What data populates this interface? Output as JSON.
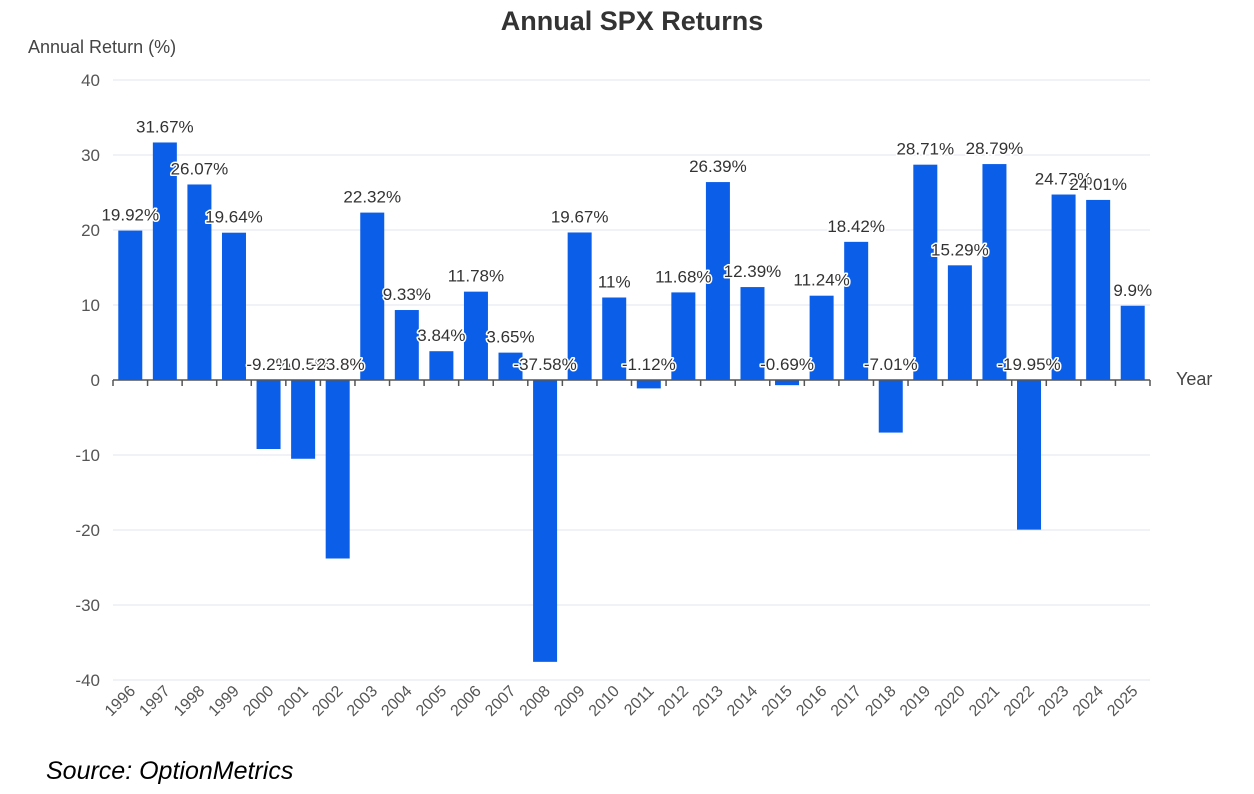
{
  "chart_data": {
    "type": "bar",
    "title": "Annual SPX Returns",
    "ylabel": "Annual Return (%)",
    "xlabel": "Year",
    "ylim": [
      -40,
      40
    ],
    "yticks": [
      40,
      30,
      20,
      10,
      0,
      -10,
      -20,
      -30,
      -40
    ],
    "grid": true,
    "legend": "none",
    "categories": [
      "1996",
      "1997",
      "1998",
      "1999",
      "2000",
      "2001",
      "2002",
      "2003",
      "2004",
      "2005",
      "2006",
      "2007",
      "2008",
      "2009",
      "2010",
      "2011",
      "2012",
      "2013",
      "2014",
      "2015",
      "2016",
      "2017",
      "2018",
      "2019",
      "2020",
      "2021",
      "2022",
      "2023",
      "2024",
      "2025"
    ],
    "values": [
      19.92,
      31.67,
      26.07,
      19.64,
      -9.2,
      -10.5,
      -23.8,
      22.32,
      9.33,
      3.84,
      11.78,
      3.65,
      -37.58,
      19.67,
      11,
      -1.12,
      11.68,
      26.39,
      12.39,
      -0.69,
      11.24,
      18.42,
      -7.01,
      28.71,
      15.29,
      28.79,
      -19.95,
      24.73,
      24.01,
      9.9
    ],
    "data_labels": [
      "19.92%",
      "31.67%",
      "26.07%",
      "19.64%",
      "-9.2%",
      "-10.5%",
      "-23.8%",
      "22.32%",
      "9.33%",
      "3.84%",
      "11.78%",
      "3.65%",
      "-37.58%",
      "19.67%",
      "11%",
      "-1.12%",
      "11.68%",
      "26.39%",
      "12.39%",
      "-0.69%",
      "11.24%",
      "18.42%",
      "-7.01%",
      "28.71%",
      "15.29%",
      "28.79%",
      "-19.95%",
      "24.73%",
      "24.01%",
      "9.9%"
    ],
    "bar_color": "#0b5ee8"
  },
  "source": "Source: OptionMetrics"
}
